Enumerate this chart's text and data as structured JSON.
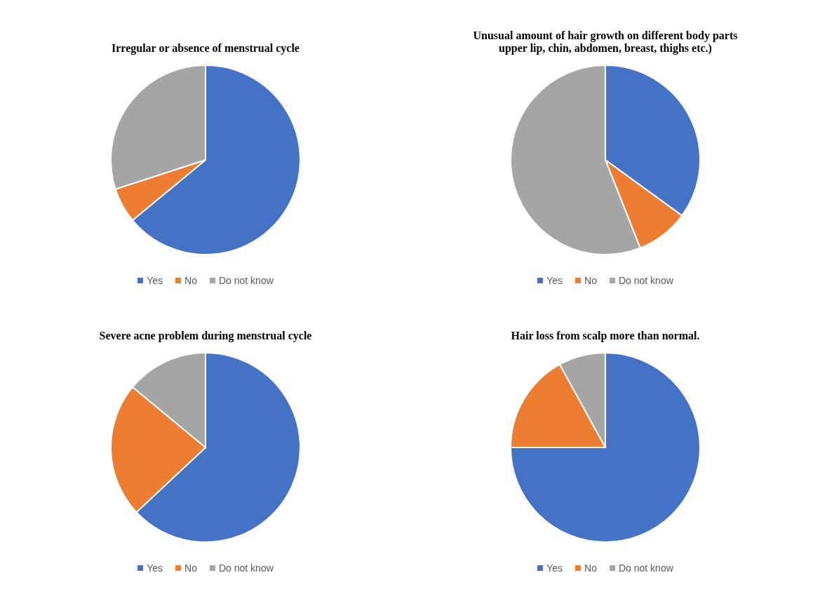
{
  "chart_data": [
    {
      "type": "pie",
      "title": "Irregular or absence of menstrual cycle",
      "categories": [
        "Yes",
        "No",
        "Do not know"
      ],
      "values": [
        64,
        6,
        30
      ],
      "colors": [
        "#4472c4",
        "#ed7d31",
        "#a5a5a5"
      ],
      "legend": "bottom"
    },
    {
      "type": "pie",
      "title": "Unusual amount of hair growth on different body parts upper lip, chin, abdomen, breast, thighs etc.)",
      "categories": [
        "Yes",
        "No",
        "Do not know"
      ],
      "values": [
        35,
        9,
        56
      ],
      "colors": [
        "#4472c4",
        "#ed7d31",
        "#a5a5a5"
      ],
      "legend": "bottom"
    },
    {
      "type": "pie",
      "title": "Severe acne problem during menstrual cycle",
      "categories": [
        "Yes",
        "No",
        "Do not know"
      ],
      "values": [
        63,
        23,
        14
      ],
      "colors": [
        "#4472c4",
        "#ed7d31",
        "#a5a5a5"
      ],
      "legend": "bottom"
    },
    {
      "type": "pie",
      "title": "Hair loss from scalp more than normal.",
      "categories": [
        "Yes",
        "No",
        "Do not know"
      ],
      "values": [
        75,
        17,
        8
      ],
      "colors": [
        "#4472c4",
        "#ed7d31",
        "#a5a5a5"
      ],
      "legend": "bottom"
    }
  ]
}
